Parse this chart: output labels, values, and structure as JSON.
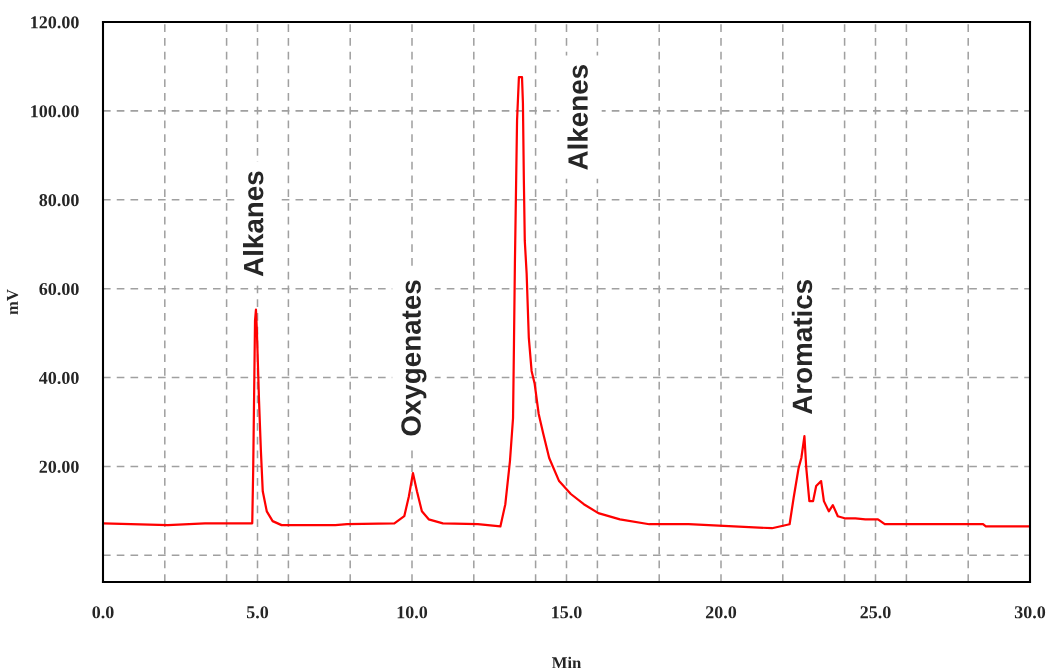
{
  "chart_data": {
    "type": "line",
    "xlabel": "Min",
    "ylabel": "mV",
    "xlim": [
      0,
      30
    ],
    "ylim": [
      -6,
      120
    ],
    "xticks": [
      {
        "value": 0,
        "label": "0.0"
      },
      {
        "value": 2,
        "label": null
      },
      {
        "value": 4,
        "label": null
      },
      {
        "value": 5,
        "label": "5.0"
      },
      {
        "value": 6,
        "label": null
      },
      {
        "value": 8,
        "label": null
      },
      {
        "value": 10,
        "label": "10.0"
      },
      {
        "value": 12,
        "label": null
      },
      {
        "value": 14,
        "label": null
      },
      {
        "value": 15,
        "label": "15.0"
      },
      {
        "value": 16,
        "label": null
      },
      {
        "value": 18,
        "label": null
      },
      {
        "value": 20,
        "label": "20.0"
      },
      {
        "value": 22,
        "label": null
      },
      {
        "value": 24,
        "label": null
      },
      {
        "value": 25,
        "label": "25.0"
      },
      {
        "value": 26,
        "label": null
      },
      {
        "value": 28,
        "label": null
      },
      {
        "value": 30,
        "label": "30.0"
      }
    ],
    "yticks": [
      {
        "value": 0,
        "label": null
      },
      {
        "value": 20,
        "label": "20.00"
      },
      {
        "value": 40,
        "label": "40.00"
      },
      {
        "value": 60,
        "label": "60.00"
      },
      {
        "value": 80,
        "label": "80.00"
      },
      {
        "value": 100,
        "label": "100.00"
      },
      {
        "value": 120,
        "label": "120.00"
      }
    ],
    "grid": true,
    "line_style": "solid",
    "marker": "none",
    "series": [
      {
        "color": "#ff0000",
        "x": [
          0,
          2.1,
          3.3,
          4.83,
          4.86,
          4.92,
          4.95,
          4.98,
          5.05,
          5.11,
          5.17,
          5.3,
          5.49,
          5.78,
          7.52,
          7.9,
          9.43,
          9.75,
          9.9,
          10.03,
          10.16,
          10.32,
          10.54,
          11.0,
          12.13,
          12.86,
          13.02,
          13.17,
          13.27,
          13.3,
          13.33,
          13.4,
          13.46,
          13.56,
          13.59,
          13.62,
          13.65,
          13.71,
          13.78,
          13.87,
          13.97,
          14.1,
          14.25,
          14.44,
          14.76,
          15.14,
          15.56,
          16.03,
          16.73,
          17.68,
          18.95,
          21.65,
          22.22,
          22.35,
          22.51,
          22.6,
          22.7,
          22.76,
          22.86,
          22.98,
          23.08,
          23.24,
          23.33,
          23.49,
          23.62,
          23.78,
          24.03,
          24.35,
          24.67,
          25.08,
          25.3,
          28.48,
          28.57,
          29.97
        ],
        "values": [
          7.2,
          6.8,
          7.2,
          7.2,
          18.9,
          52.8,
          55.3,
          50.5,
          34.7,
          23.5,
          14.4,
          9.9,
          7.7,
          6.8,
          6.8,
          7.0,
          7.2,
          8.8,
          13.3,
          18.5,
          14.4,
          9.9,
          8.1,
          7.2,
          7.0,
          6.5,
          11.5,
          21.2,
          30.9,
          47.6,
          65.6,
          97.9,
          107.6,
          107.6,
          101.7,
          84.4,
          70.8,
          63.4,
          49.0,
          41.5,
          38.6,
          31.8,
          27.3,
          21.9,
          16.7,
          13.8,
          11.5,
          9.5,
          8.1,
          7.0,
          7.0,
          6.1,
          7.0,
          12.9,
          19.6,
          21.9,
          26.8,
          19.6,
          12.2,
          12.2,
          15.6,
          16.7,
          12.2,
          9.9,
          11.3,
          8.8,
          8.3,
          8.3,
          8.1,
          8.1,
          7.0,
          7.0,
          6.5,
          6.5
        ]
      }
    ],
    "annotations": [
      "Alkanes",
      "Oxygenates",
      "Alkenes",
      "Aromatics"
    ]
  }
}
